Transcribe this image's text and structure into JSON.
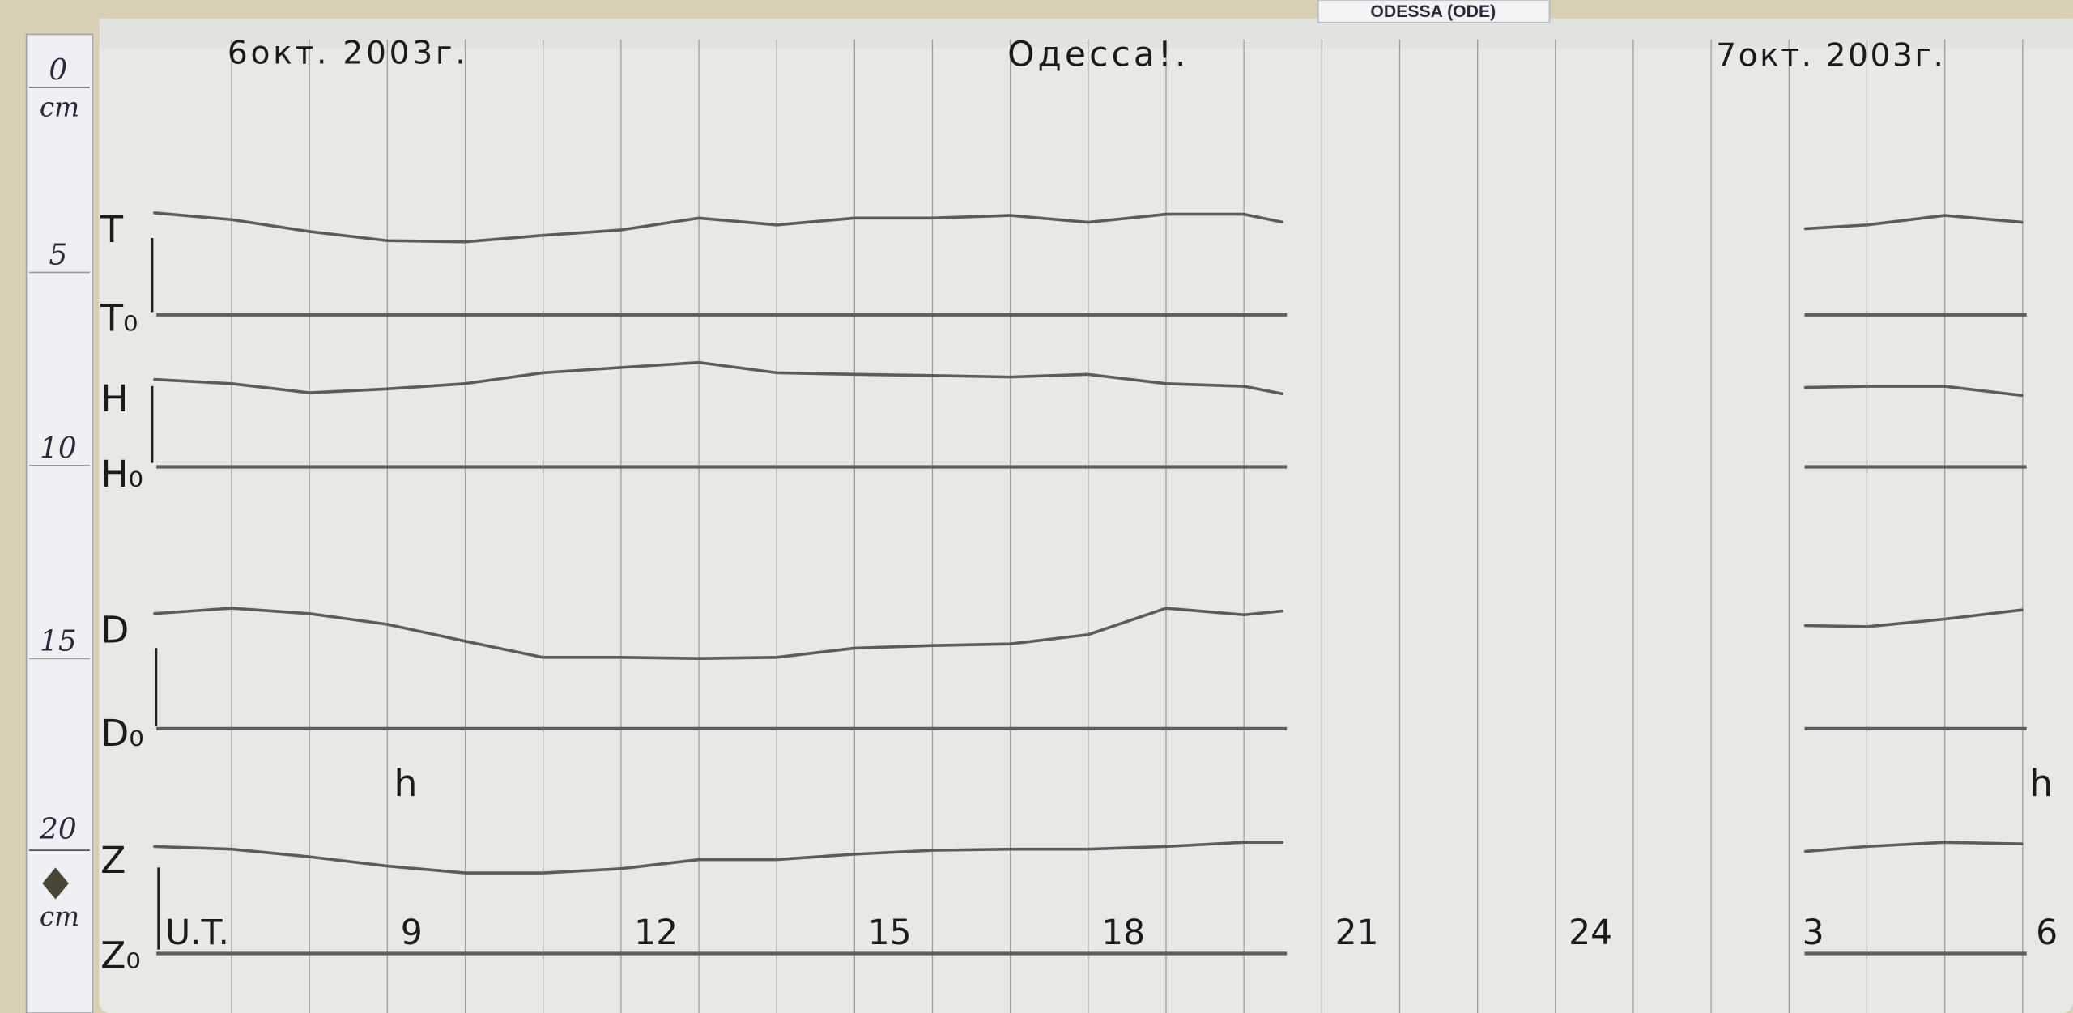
{
  "station_tag": "ODESSA (ODE)",
  "header": {
    "date_left": "6окт. 2003г.",
    "station": "Одесса!.",
    "date_right": "7окт. 2003г."
  },
  "ruler": {
    "labels": [
      "0",
      "cm",
      "5",
      "10",
      "15",
      "20",
      "cm"
    ]
  },
  "components": {
    "T": "T",
    "T0": "T₀",
    "H": "H",
    "H0": "H₀",
    "D": "D",
    "D0": "D₀",
    "Z": "Z",
    "Z0": "Z₀"
  },
  "scale_mark": "h",
  "chart_data": {
    "type": "line",
    "title": "",
    "xlabel": "U.T.",
    "ylabel": "",
    "x_unit": "hour (U.T.)",
    "y_unit": "cm deflection above baseline",
    "x_tick_labels": [
      "U.T.",
      "9",
      "12",
      "15",
      "18",
      "21",
      "24",
      "3",
      "6"
    ],
    "x_ticks_hours": [
      6,
      9,
      12,
      15,
      18,
      21,
      24,
      27,
      30
    ],
    "grid": true,
    "segments": [
      {
        "x": [
          6,
          7,
          8,
          9,
          10,
          11,
          12,
          13,
          14,
          15,
          16,
          17,
          18,
          19,
          20,
          20.5
        ],
        "series": [
          {
            "name": "T",
            "values": [
              2.66,
              2.48,
              2.17,
              1.93,
              1.9,
              2.07,
              2.21,
              2.52,
              2.34,
              2.52,
              2.52,
              2.59,
              2.41,
              2.62,
              2.62,
              2.41
            ]
          },
          {
            "name": "H",
            "values": [
              2.28,
              2.17,
              1.93,
              2.03,
              2.17,
              2.45,
              2.59,
              2.72,
              2.45,
              2.41,
              2.38,
              2.34,
              2.41,
              2.17,
              2.1,
              1.9
            ]
          },
          {
            "name": "D",
            "values": [
              3.0,
              3.14,
              3.0,
              2.72,
              2.28,
              1.86,
              1.86,
              1.83,
              1.86,
              2.1,
              2.17,
              2.21,
              2.45,
              3.14,
              2.97,
              3.07
            ]
          },
          {
            "name": "Z",
            "values": [
              2.79,
              2.72,
              2.52,
              2.28,
              2.1,
              2.1,
              2.21,
              2.45,
              2.45,
              2.59,
              2.69,
              2.72,
              2.72,
              2.79,
              2.9,
              2.9
            ]
          }
        ]
      },
      {
        "x": [
          27.2,
          28,
          29,
          30
        ],
        "series": [
          {
            "name": "T",
            "values": [
              2.24,
              2.34,
              2.59,
              2.41
            ]
          },
          {
            "name": "H",
            "values": [
              2.07,
              2.1,
              2.1,
              1.86
            ]
          },
          {
            "name": "D",
            "values": [
              2.69,
              2.66,
              2.86,
              3.1
            ]
          },
          {
            "name": "Z",
            "values": [
              2.66,
              2.79,
              2.9,
              2.86
            ]
          }
        ]
      }
    ]
  }
}
